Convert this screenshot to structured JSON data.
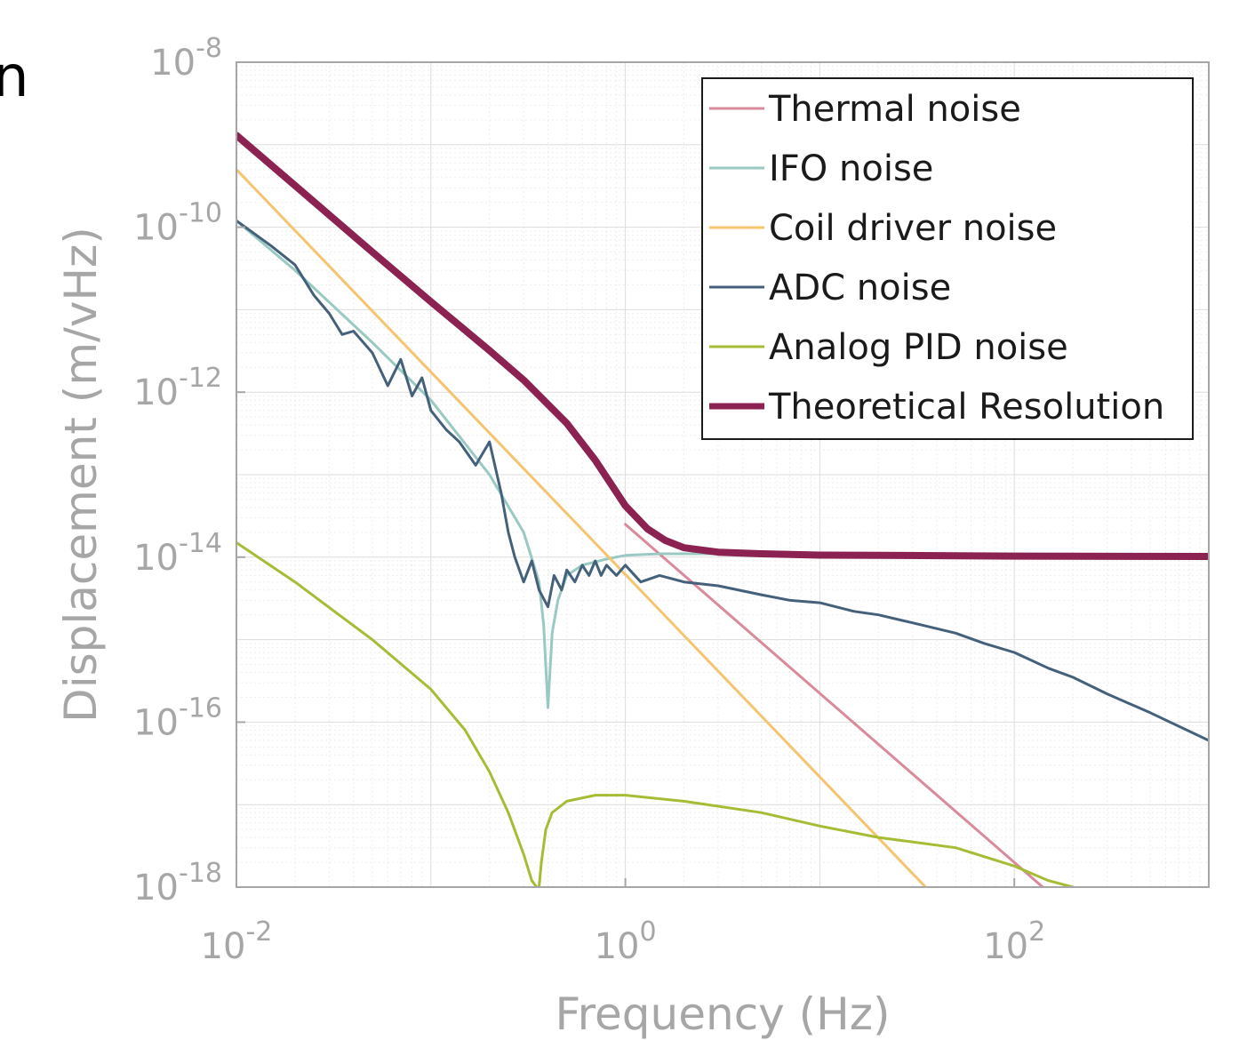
{
  "corner_fragment": "n",
  "chart_data": {
    "type": "line",
    "title": "",
    "xlabel": "Frequency (Hz)",
    "ylabel": "Displacement (m/vHz)",
    "xscale": "log",
    "yscale": "log",
    "xlim": [
      0.01,
      1000
    ],
    "ylim": [
      1e-18,
      1e-08
    ],
    "grid": true,
    "legend_position": "top-right",
    "x_ticks": [
      {
        "value": 0.01,
        "base": "10",
        "exp": "-2"
      },
      {
        "value": 1,
        "base": "10",
        "exp": "0"
      },
      {
        "value": 100,
        "base": "10",
        "exp": "2"
      }
    ],
    "y_ticks": [
      {
        "value": 1e-18,
        "base": "10",
        "exp": "-18"
      },
      {
        "value": 1e-16,
        "base": "10",
        "exp": "-16"
      },
      {
        "value": 1e-14,
        "base": "10",
        "exp": "-14"
      },
      {
        "value": 1e-12,
        "base": "10",
        "exp": "-12"
      },
      {
        "value": 1e-10,
        "base": "10",
        "exp": "-10"
      },
      {
        "value": 1e-08,
        "base": "10",
        "exp": "-8"
      }
    ],
    "series": [
      {
        "name": "Thermal noise",
        "color": "#d98a9b",
        "width": 3,
        "x": [
          1,
          140
        ],
        "y": [
          2.5e-14,
          1e-18
        ]
      },
      {
        "name": "IFO noise",
        "color": "#99c9c2",
        "width": 3,
        "x": [
          0.01,
          0.02,
          0.05,
          0.1,
          0.2,
          0.3,
          0.36,
          0.38,
          0.4,
          0.42,
          0.45,
          0.5,
          0.6,
          0.8,
          1,
          1.5,
          2,
          5,
          10
        ],
        "y": [
          1.2e-10,
          3e-11,
          4e-12,
          8e-13,
          1e-13,
          2e-14,
          5e-15,
          1.5e-15,
          1.5e-16,
          1.2e-15,
          3e-15,
          6e-15,
          8e-15,
          9.5e-15,
          1.05e-14,
          1.1e-14,
          1.1e-14,
          1.1e-14,
          1.1e-14
        ]
      },
      {
        "name": "Coil driver noise",
        "color": "#f5c46e",
        "width": 3,
        "x": [
          0.01,
          35
        ],
        "y": [
          5e-10,
          1e-18
        ]
      },
      {
        "name": "ADC noise",
        "color": "#44607a",
        "width": 3,
        "x": [
          0.01,
          0.015,
          0.02,
          0.025,
          0.03,
          0.035,
          0.04,
          0.05,
          0.06,
          0.07,
          0.08,
          0.09,
          0.1,
          0.12,
          0.14,
          0.17,
          0.2,
          0.23,
          0.25,
          0.27,
          0.3,
          0.33,
          0.36,
          0.4,
          0.43,
          0.47,
          0.5,
          0.55,
          0.6,
          0.65,
          0.7,
          0.75,
          0.8,
          0.9,
          1,
          1.2,
          1.5,
          2,
          3,
          5,
          7,
          10,
          15,
          20,
          30,
          50,
          70,
          100,
          150,
          200,
          300,
          500,
          1000
        ],
        "y": [
          1.2e-10,
          6e-11,
          3.5e-11,
          1.5e-11,
          9e-12,
          5e-12,
          5.5e-12,
          3e-12,
          1.2e-12,
          2.5e-12,
          9e-13,
          1.5e-12,
          6e-13,
          3.5e-13,
          2.5e-13,
          1.3e-13,
          2.5e-13,
          6e-14,
          2e-14,
          1e-14,
          5e-15,
          9e-15,
          4e-15,
          2.5e-15,
          6e-15,
          4e-15,
          7e-15,
          5e-15,
          8e-15,
          6e-15,
          9e-15,
          6e-15,
          8e-15,
          6e-15,
          8e-15,
          5e-15,
          6e-15,
          5e-15,
          4.5e-15,
          3.5e-15,
          3e-15,
          2.8e-15,
          2.2e-15,
          2e-15,
          1.6e-15,
          1.2e-15,
          9e-16,
          7e-16,
          4.5e-16,
          3.5e-16,
          2.2e-16,
          1.3e-16,
          6e-17
        ]
      },
      {
        "name": "Analog PID noise",
        "color": "#a5bc34",
        "width": 3,
        "x": [
          0.01,
          0.02,
          0.05,
          0.1,
          0.15,
          0.2,
          0.25,
          0.3,
          0.33,
          0.35,
          0.36,
          0.37,
          0.39,
          0.42,
          0.5,
          0.7,
          1,
          2,
          5,
          10,
          20,
          50,
          100,
          150,
          200
        ],
        "y": [
          1.5e-14,
          5e-15,
          1e-15,
          2.5e-16,
          8e-17,
          2.5e-17,
          8e-18,
          2.5e-18,
          1.2e-18,
          1e-18,
          1e-18,
          2e-18,
          5e-18,
          8e-18,
          1.1e-17,
          1.3e-17,
          1.3e-17,
          1.1e-17,
          8e-18,
          5.5e-18,
          4e-18,
          3e-18,
          1.8e-18,
          1.2e-18,
          1e-18
        ]
      },
      {
        "name": "Theoretical Resolution",
        "color": "#8b2252",
        "width": 8,
        "x": [
          0.01,
          0.02,
          0.05,
          0.1,
          0.2,
          0.3,
          0.5,
          0.7,
          1,
          1.3,
          1.6,
          2,
          3,
          5,
          10,
          20,
          50,
          100,
          1000
        ],
        "y": [
          1.3e-09,
          3.2e-10,
          5e-11,
          1.25e-11,
          3.2e-12,
          1.4e-12,
          4.2e-13,
          1.5e-13,
          4.2e-14,
          2.2e-14,
          1.6e-14,
          1.3e-14,
          1.15e-14,
          1.1e-14,
          1.06e-14,
          1.05e-14,
          1.04e-14,
          1.03e-14,
          1.02e-14
        ]
      }
    ]
  }
}
